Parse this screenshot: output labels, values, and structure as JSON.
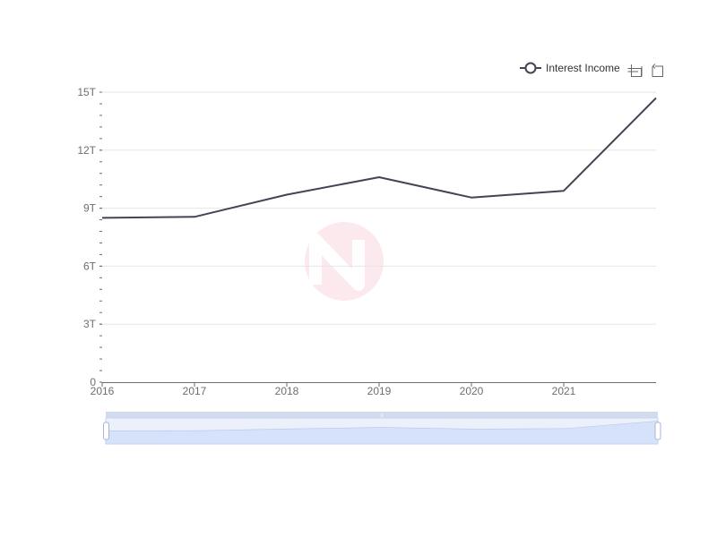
{
  "colors": {
    "line": "#464354",
    "grid": "#e6e6e6",
    "axis": "#6e6e6e",
    "tick_text": "#6e6e6e",
    "zoom_fill": "#d6e2f9",
    "zoom_border": "#c9d6f0",
    "zoom_handle": "#a6b5d7",
    "logo_pink": "#f2a2b6"
  },
  "toolbox": {
    "zoom_icon": "data-zoom-icon",
    "restore_icon": "restore-icon"
  },
  "chart_data": {
    "type": "line",
    "title": "",
    "xlabel": "",
    "ylabel": "",
    "x": [
      2016,
      2017,
      2018,
      2019,
      2020,
      2021,
      2022
    ],
    "x_tick_labels": [
      "2016",
      "2017",
      "2018",
      "2019",
      "2020",
      "2021"
    ],
    "xlim": [
      2016,
      2022
    ],
    "y_tick_labels": [
      "0",
      "3T",
      "6T",
      "9T",
      "12T",
      "15T"
    ],
    "y_ticks": [
      0,
      3,
      6,
      9,
      12,
      15
    ],
    "ylim": [
      0,
      15
    ],
    "y_unit": "T",
    "grid": true,
    "legend_position": "top-right",
    "series": [
      {
        "name": "Interest Income",
        "values": [
          8.5,
          8.55,
          9.7,
          10.6,
          9.55,
          9.9,
          14.7
        ]
      }
    ],
    "zoom_range": [
      0,
      100
    ]
  }
}
